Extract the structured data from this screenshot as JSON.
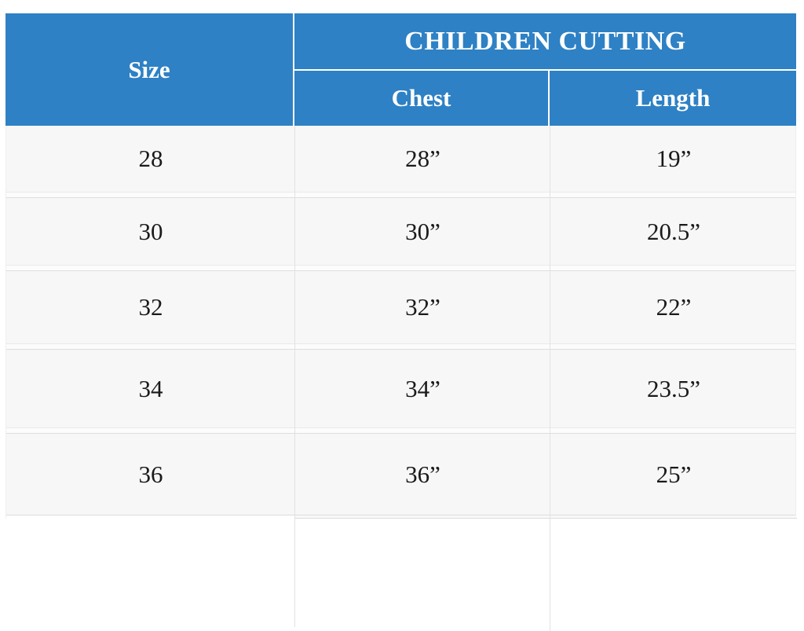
{
  "chart_data": {
    "type": "table",
    "title": "CHILDREN CUTTING",
    "columns": [
      "Size",
      "Chest",
      "Length"
    ],
    "rows": [
      [
        "28",
        "28”",
        "19”"
      ],
      [
        "30",
        "30”",
        "20.5”"
      ],
      [
        "32",
        "32”",
        "22”"
      ],
      [
        "34",
        "34”",
        "23.5”"
      ],
      [
        "36",
        "36”",
        "25”"
      ]
    ]
  },
  "colors": {
    "header_bg": "#2e81c4",
    "header_text": "#ffffff",
    "row_bg": "#f7f7f8",
    "row_border": "#e0e0e0",
    "body_text": "#1a1a1a",
    "page_bg": "#ffffff"
  }
}
